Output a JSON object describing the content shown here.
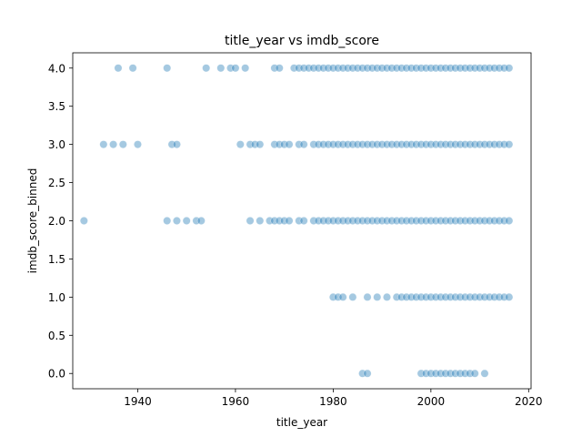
{
  "chart_data": {
    "type": "scatter",
    "title": "title_year vs imdb_score",
    "xlabel": "title_year",
    "ylabel": "imdb_score_binned",
    "xlim": [
      1926.7,
      2020.5
    ],
    "ylim": [
      -0.2,
      4.2
    ],
    "xticks": [
      1940,
      1960,
      1980,
      2000,
      2020
    ],
    "yticks": [
      0.0,
      0.5,
      1.0,
      1.5,
      2.0,
      2.5,
      3.0,
      3.5,
      4.0
    ],
    "xtick_labels": [
      "1940",
      "1960",
      "1980",
      "2000",
      "2020"
    ],
    "ytick_labels": [
      "0.0",
      "0.5",
      "1.0",
      "1.5",
      "2.0",
      "2.5",
      "3.0",
      "3.5",
      "4.0"
    ],
    "grid": false,
    "color": "#1f77b4",
    "point_alpha": 0.4,
    "series": [
      {
        "values": [
          {
            "y": 4,
            "x": [
              1936,
              1939,
              1946,
              1954,
              1957,
              1959,
              1960,
              1962,
              1968,
              1969,
              1972,
              1973,
              1974,
              1975,
              1976,
              1977,
              1978,
              1979,
              1980,
              1981,
              1982,
              1983,
              1984,
              1985,
              1986,
              1987,
              1988,
              1989,
              1990,
              1991,
              1992,
              1993,
              1994,
              1995,
              1996,
              1997,
              1998,
              1999,
              2000,
              2001,
              2002,
              2003,
              2004,
              2005,
              2006,
              2007,
              2008,
              2009,
              2010,
              2011,
              2012,
              2013,
              2014,
              2015,
              2016
            ]
          },
          {
            "y": 3,
            "x": [
              1933,
              1935,
              1937,
              1940,
              1947,
              1948,
              1961,
              1963,
              1964,
              1965,
              1968,
              1969,
              1970,
              1971,
              1973,
              1974,
              1976,
              1977,
              1978,
              1979,
              1980,
              1981,
              1982,
              1983,
              1984,
              1985,
              1986,
              1987,
              1988,
              1989,
              1990,
              1991,
              1992,
              1993,
              1994,
              1995,
              1996,
              1997,
              1998,
              1999,
              2000,
              2001,
              2002,
              2003,
              2004,
              2005,
              2006,
              2007,
              2008,
              2009,
              2010,
              2011,
              2012,
              2013,
              2014,
              2015,
              2016
            ]
          },
          {
            "y": 2,
            "x": [
              1929,
              1946,
              1948,
              1950,
              1952,
              1953,
              1963,
              1965,
              1967,
              1968,
              1969,
              1970,
              1971,
              1973,
              1974,
              1976,
              1977,
              1978,
              1979,
              1980,
              1981,
              1982,
              1983,
              1984,
              1985,
              1986,
              1987,
              1988,
              1989,
              1990,
              1991,
              1992,
              1993,
              1994,
              1995,
              1996,
              1997,
              1998,
              1999,
              2000,
              2001,
              2002,
              2003,
              2004,
              2005,
              2006,
              2007,
              2008,
              2009,
              2010,
              2011,
              2012,
              2013,
              2014,
              2015,
              2016
            ]
          },
          {
            "y": 1,
            "x": [
              1980,
              1981,
              1982,
              1984,
              1987,
              1989,
              1991,
              1993,
              1994,
              1995,
              1996,
              1997,
              1998,
              1999,
              2000,
              2001,
              2002,
              2003,
              2004,
              2005,
              2006,
              2007,
              2008,
              2009,
              2010,
              2011,
              2012,
              2013,
              2014,
              2015,
              2016
            ]
          },
          {
            "y": 0,
            "x": [
              1986,
              1987,
              1998,
              1999,
              2000,
              2001,
              2002,
              2003,
              2004,
              2005,
              2006,
              2007,
              2008,
              2009,
              2011
            ]
          }
        ]
      }
    ]
  }
}
